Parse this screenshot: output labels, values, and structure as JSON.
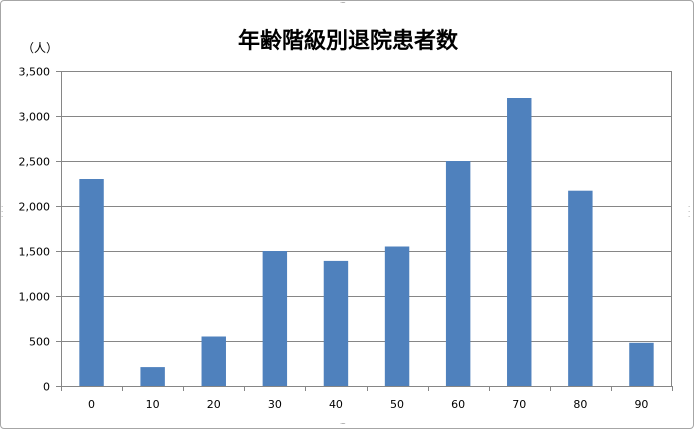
{
  "chart_data": {
    "type": "bar",
    "title": "年齢階級別退院患者数",
    "unit_label": "（人）",
    "categories": [
      "0",
      "10",
      "20",
      "30",
      "40",
      "50",
      "60",
      "70",
      "80",
      "90"
    ],
    "values": [
      2300,
      210,
      550,
      1500,
      1390,
      1550,
      2500,
      3200,
      2170,
      480
    ],
    "ylim": [
      0,
      3500
    ],
    "yticks": [
      0,
      500,
      1000,
      1500,
      2000,
      2500,
      3000,
      3500
    ],
    "ytick_labels": [
      "0",
      "500",
      "1,000",
      "1,500",
      "2,000",
      "2,500",
      "3,000",
      "3,500"
    ],
    "grid": true,
    "legend": "none",
    "bar_color": "#4f81bd",
    "grid_color": "#868686"
  }
}
